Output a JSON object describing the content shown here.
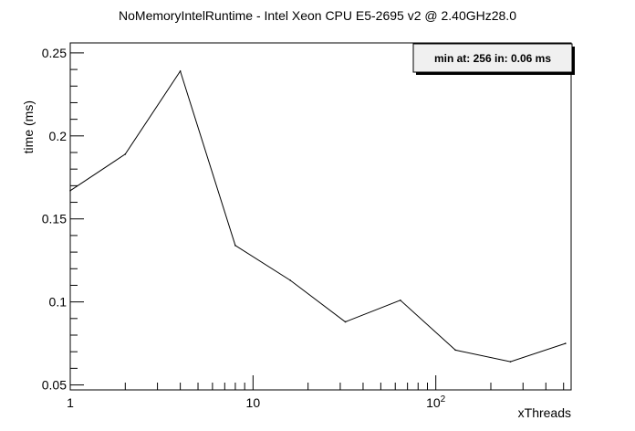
{
  "chart_data": {
    "type": "line",
    "title": "NoMemoryIntelRuntime - Intel Xeon CPU E5-2695 v2 @ 2.40GHz28.0",
    "xlabel": "xThreads",
    "ylabel": "time (ms)",
    "x_scale": "log",
    "xlim": [
      1,
      550
    ],
    "ylim": [
      0.047,
      0.256
    ],
    "x_ticks": [
      {
        "value": 1,
        "label": "1",
        "sup": ""
      },
      {
        "value": 10,
        "label": "10",
        "sup": ""
      },
      {
        "value": 100,
        "label": "10",
        "sup": "2"
      }
    ],
    "y_ticks": [
      {
        "value": 0.05,
        "label": "0.05"
      },
      {
        "value": 0.1,
        "label": "0.1"
      },
      {
        "value": 0.15,
        "label": "0.15"
      },
      {
        "value": 0.2,
        "label": "0.2"
      },
      {
        "value": 0.25,
        "label": "0.25"
      }
    ],
    "series": [
      {
        "x": [
          1,
          2,
          4,
          8,
          16,
          32,
          64,
          128,
          256,
          512
        ],
        "values": [
          0.167,
          0.189,
          0.239,
          0.134,
          0.113,
          0.088,
          0.101,
          0.071,
          0.064,
          0.075
        ]
      }
    ],
    "annotation": "min at: 256 in: 0.06 ms",
    "legend_position": "top-right",
    "grid": false
  }
}
